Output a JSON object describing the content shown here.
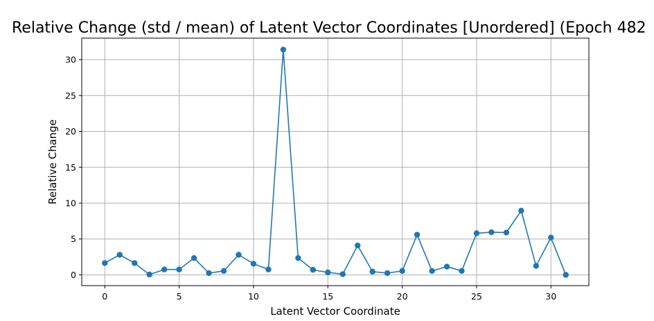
{
  "chart_data": {
    "type": "line",
    "title": "Relative Change (std / mean) of Latent Vector Coordinates [Unordered] (Epoch 482",
    "xlabel": "Latent Vector Coordinate",
    "ylabel": "Relative Change",
    "xlim": [
      -1.55,
      32.55
    ],
    "ylim": [
      -1.5,
      33.0
    ],
    "xticks": [
      0,
      5,
      10,
      15,
      20,
      25,
      30
    ],
    "yticks": [
      0,
      5,
      10,
      15,
      20,
      25,
      30
    ],
    "grid": true,
    "legend": false,
    "colors": {
      "line": "#1f77b4",
      "grid": "#b0b0b0",
      "axes": "#000000"
    },
    "series": [
      {
        "marker": "circle",
        "x": [
          0,
          1,
          2,
          3,
          4,
          5,
          6,
          7,
          8,
          9,
          10,
          11,
          12,
          13,
          14,
          15,
          16,
          17,
          18,
          19,
          20,
          21,
          22,
          23,
          24,
          25,
          26,
          27,
          28,
          29,
          30,
          31
        ],
        "values": [
          1.65,
          2.8,
          1.65,
          0.05,
          0.75,
          0.75,
          2.35,
          0.25,
          0.55,
          2.8,
          1.55,
          0.75,
          31.4,
          2.35,
          0.7,
          0.35,
          0.1,
          4.1,
          0.45,
          0.25,
          0.55,
          5.6,
          0.55,
          1.15,
          0.55,
          5.8,
          5.95,
          5.9,
          8.95,
          1.25,
          5.2,
          0.0
        ]
      }
    ]
  }
}
